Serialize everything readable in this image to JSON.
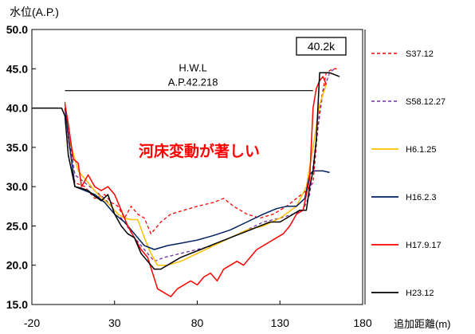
{
  "chart_data": {
    "type": "line",
    "ylabel": "水位(A.P.)",
    "xlabel": "追加距離(m)",
    "xlim": [
      -20,
      180
    ],
    "ylim": [
      15,
      50
    ],
    "xticks": [
      -20,
      30,
      80,
      130,
      180
    ],
    "yticks": [
      15.0,
      20.0,
      25.0,
      30.0,
      35.0,
      40.0,
      45.0,
      50.0
    ],
    "ytick_labels": [
      "15.0",
      "20.0",
      "25.0",
      "30.0",
      "35.0",
      "40.0",
      "45.0",
      "50.0"
    ],
    "grid": false,
    "legend_position": "right",
    "section_label": "40.2k",
    "hwl": {
      "label_line1": "H.W.L",
      "label_line2": "A.P.42.218",
      "x_start": 0,
      "x_end": 150,
      "y": 42.218
    },
    "annotation": {
      "text": "河床変動が著しい",
      "color": "#ff0000"
    },
    "colors": {
      "S37.12": "#ff0000",
      "S58.12.27": "#7030a0",
      "H6.1.25": "#ffc000",
      "H16.2.3": "#002060",
      "H17.9.17": "#ff0000",
      "H23.12": "#000000"
    },
    "series": [
      {
        "name": "S37.12",
        "dash": "4,3",
        "width": 1.3,
        "x": [
          0,
          2,
          6,
          12,
          18,
          24,
          28,
          32,
          36,
          40,
          44,
          48,
          52,
          58,
          64,
          72,
          80,
          90,
          96,
          102,
          110,
          118,
          126,
          134,
          140,
          146,
          150,
          154,
          158,
          162,
          166
        ],
        "y": [
          40.8,
          36.0,
          30.5,
          30.0,
          28.5,
          29.0,
          28.0,
          27.5,
          26.0,
          27.5,
          26.5,
          26.0,
          24.0,
          25.5,
          26.5,
          27.0,
          27.5,
          28.0,
          28.5,
          27.5,
          26.5,
          26.0,
          26.5,
          27.5,
          28.5,
          29.5,
          30.5,
          40.0,
          44.5,
          45.0,
          45.0
        ]
      },
      {
        "name": "S58.12.27",
        "dash": "4,3",
        "width": 1.3,
        "x": [
          0,
          2,
          6,
          12,
          18,
          24,
          30,
          36,
          42,
          46,
          50,
          54,
          60,
          70,
          80,
          90,
          100,
          110,
          120,
          130,
          138,
          144,
          148,
          152,
          156,
          160,
          163
        ],
        "y": [
          40.5,
          37.0,
          31.5,
          30.5,
          29.5,
          28.5,
          27.0,
          25.5,
          23.5,
          22.5,
          21.5,
          20.5,
          21.0,
          21.5,
          22.0,
          22.5,
          23.5,
          24.5,
          25.5,
          26.0,
          26.5,
          27.0,
          29.0,
          36.0,
          42.0,
          44.5,
          45.0
        ]
      },
      {
        "name": "H6.1.25",
        "dash": "",
        "width": 1.5,
        "x": [
          0,
          2,
          8,
          14,
          20,
          28,
          32,
          36,
          40,
          44,
          48,
          52,
          56,
          62,
          70,
          80,
          90,
          100,
          110,
          120,
          130,
          140,
          146,
          150,
          154,
          158
        ],
        "y": [
          40.5,
          36.5,
          32.0,
          30.5,
          29.0,
          27.5,
          26.5,
          26.0,
          25.8,
          25.8,
          23.5,
          21.5,
          20.0,
          20.0,
          20.5,
          21.5,
          22.5,
          23.5,
          24.5,
          25.0,
          26.0,
          27.5,
          30.0,
          35.0,
          40.5,
          43.0
        ]
      },
      {
        "name": "H16.2.3",
        "dash": "",
        "width": 1.5,
        "x": [
          0,
          2,
          6,
          12,
          18,
          24,
          30,
          36,
          42,
          48,
          54,
          62,
          70,
          80,
          90,
          100,
          110,
          120,
          128,
          134,
          140,
          145,
          148,
          150,
          156,
          160
        ],
        "y": [
          40.0,
          36.5,
          30.0,
          29.5,
          29.0,
          28.0,
          26.5,
          25.5,
          24.0,
          22.5,
          22.0,
          22.5,
          22.8,
          23.2,
          23.8,
          24.5,
          25.5,
          26.5,
          27.2,
          27.5,
          27.5,
          28.5,
          31.5,
          32.0,
          32.0,
          31.8
        ]
      },
      {
        "name": "H17.9.17",
        "dash": "",
        "width": 1.5,
        "x": [
          0,
          2,
          5,
          8,
          10,
          14,
          18,
          22,
          26,
          30,
          34,
          38,
          42,
          46,
          50,
          53,
          56,
          60,
          64,
          68,
          72,
          76,
          80,
          84,
          88,
          92,
          96,
          100,
          104,
          108,
          112,
          116,
          120,
          124,
          128,
          132,
          136,
          140,
          144,
          148,
          150,
          152,
          154,
          156,
          158
        ],
        "y": [
          40.5,
          38.0,
          33.5,
          33.0,
          30.0,
          31.5,
          30.0,
          29.5,
          30.0,
          29.0,
          27.0,
          25.0,
          23.5,
          22.0,
          21.0,
          19.0,
          17.0,
          16.5,
          16.0,
          17.0,
          17.5,
          18.0,
          17.5,
          18.5,
          19.0,
          18.0,
          19.5,
          20.0,
          20.5,
          20.0,
          21.0,
          22.0,
          22.5,
          23.0,
          23.5,
          24.0,
          25.0,
          26.5,
          27.0,
          31.0,
          40.0,
          42.5,
          43.5,
          44.0,
          43.0
        ]
      },
      {
        "name": "H23.12",
        "dash": "",
        "width": 1.5,
        "x": [
          -20,
          -12,
          -10,
          -2,
          0,
          2,
          6,
          10,
          14,
          18,
          22,
          26,
          30,
          34,
          38,
          42,
          46,
          50,
          54,
          58,
          62,
          66,
          70,
          76,
          82,
          88,
          94,
          100,
          106,
          112,
          118,
          124,
          130,
          134,
          138,
          142,
          146,
          148,
          150,
          152,
          154,
          156,
          160,
          166
        ],
        "y": [
          40.0,
          40.0,
          40.0,
          40.0,
          39.0,
          34.0,
          30.0,
          29.8,
          29.5,
          28.8,
          28.2,
          29.0,
          26.5,
          25.0,
          24.0,
          23.5,
          21.5,
          20.5,
          19.5,
          19.5,
          20.0,
          20.5,
          21.0,
          21.5,
          22.0,
          22.5,
          23.0,
          23.5,
          24.0,
          24.5,
          25.0,
          25.5,
          25.5,
          26.0,
          26.5,
          27.0,
          27.0,
          30.0,
          32.0,
          36.0,
          44.5,
          44.5,
          44.5,
          44.0
        ]
      }
    ]
  }
}
